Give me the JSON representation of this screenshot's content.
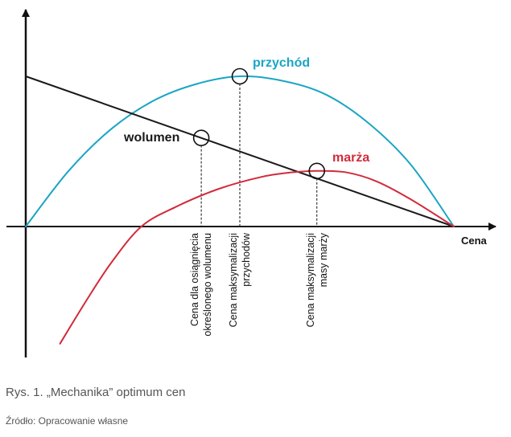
{
  "chart_data": {
    "type": "line",
    "xlabel": "Cena",
    "ylabel": "",
    "grid": false,
    "xlim": [
      0,
      1
    ],
    "ylim": [
      -0.78,
      1
    ],
    "series": [
      {
        "name": "przychód",
        "color": "#1aa5c4",
        "x": [
          0,
          0.1,
          0.2,
          0.3,
          0.4,
          0.5,
          0.6,
          0.7,
          0.8,
          0.9,
          1.0
        ],
        "y": [
          0,
          0.37,
          0.65,
          0.84,
          0.95,
          1.0,
          0.97,
          0.88,
          0.69,
          0.41,
          0
        ]
      },
      {
        "name": "wolumen",
        "color": "#1a1a1a",
        "x": [
          0,
          1.0
        ],
        "y": [
          1.0,
          0
        ]
      },
      {
        "name": "marża",
        "color": "#d22b3b",
        "x": [
          0.08,
          0.14,
          0.2,
          0.27,
          0.35,
          0.45,
          0.55,
          0.62,
          0.68,
          0.75,
          0.82,
          0.9,
          1.0
        ],
        "y": [
          -0.78,
          -0.5,
          -0.24,
          0.0,
          0.13,
          0.25,
          0.33,
          0.36,
          0.37,
          0.36,
          0.3,
          0.18,
          0
        ]
      }
    ],
    "markers": [
      {
        "series": "przychód",
        "x": 0.5,
        "y": 1.0
      },
      {
        "series": "wolumen",
        "x": 0.41,
        "y": 0.59
      },
      {
        "series": "marża",
        "x": 0.68,
        "y": 0.37
      }
    ],
    "annotations": [
      {
        "x": 0.41,
        "lines": [
          "Cena dla osiągnięcia",
          "określonego wolumenu"
        ]
      },
      {
        "x": 0.5,
        "lines": [
          "Cena maksymalizacji",
          "przychodów"
        ]
      },
      {
        "x": 0.68,
        "lines": [
          "Cena maksymalizacji",
          "masy marży"
        ]
      }
    ]
  },
  "caption": "Rys. 1. „Mechanika” optimum cen",
  "source": "Źródło: Opracowanie własne"
}
